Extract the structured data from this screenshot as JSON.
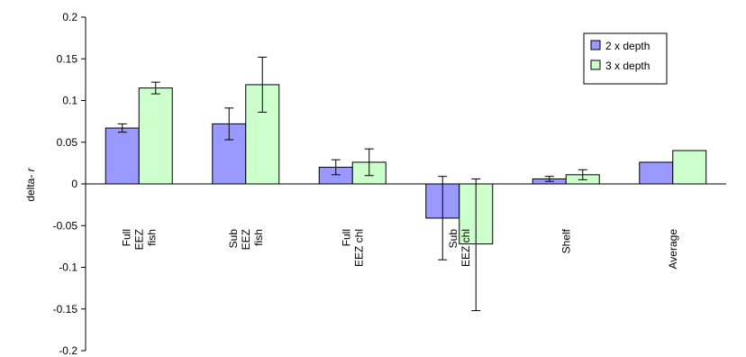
{
  "chart_data": {
    "type": "bar",
    "ylabel_prefix": "delta- ",
    "ylabel_italic": "r",
    "ylim": [
      -0.2,
      0.2
    ],
    "yticks": [
      -0.2,
      -0.15,
      -0.1,
      -0.05,
      0,
      0.05,
      0.1,
      0.15,
      0.2
    ],
    "ytick_labels": [
      "-0.2",
      "-0.15",
      "-0.1",
      "-0.05",
      "0",
      "0.05",
      "0.1",
      "0.15",
      "0.2"
    ],
    "grid": false,
    "legend": "top-right",
    "categories": [
      [
        "Full",
        "EEZ",
        "fish"
      ],
      [
        "Sub",
        "EEZ",
        "fish"
      ],
      [
        "Full",
        "EEZ chl"
      ],
      [
        "Sub",
        "EEZ chl"
      ],
      [
        "Shelf"
      ],
      [
        "Average"
      ]
    ],
    "series": [
      {
        "name": "2 x depth",
        "color": "#9999ff",
        "values": [
          0.067,
          0.072,
          0.02,
          -0.041,
          0.006,
          0.026
        ],
        "err_low": [
          0.005,
          0.019,
          0.009,
          0.05,
          0.003,
          null
        ],
        "err_high": [
          0.005,
          0.019,
          0.009,
          0.05,
          0.003,
          null
        ]
      },
      {
        "name": "3 x depth",
        "color": "#ccffcc",
        "values": [
          0.115,
          0.119,
          0.026,
          -0.072,
          0.011,
          0.04
        ],
        "err_low": [
          0.007,
          0.033,
          0.016,
          0.08,
          0.006,
          null
        ],
        "err_high": [
          0.007,
          0.033,
          0.016,
          0.078,
          0.006,
          null
        ]
      }
    ]
  }
}
